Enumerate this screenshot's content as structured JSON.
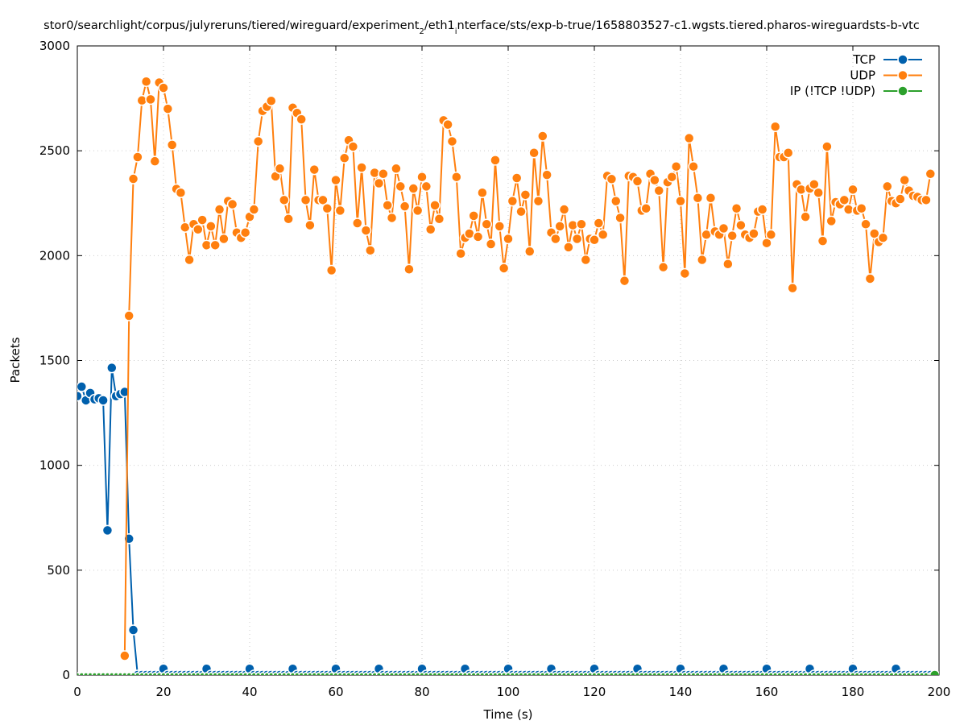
{
  "chart_data": {
    "type": "line",
    "title_parts": [
      {
        "t": "stor0/searchlight/corpus/julyreruns/tiered/wireguard/experiment"
      },
      {
        "t": "2",
        "sub": true
      },
      {
        "t": "/eth1"
      },
      {
        "t": "i",
        "sub": true
      },
      {
        "t": "nterface/sts/exp-b-true/1658803527-c1.wgsts.tiered.pharos-wireguardsts-b-vtc"
      }
    ],
    "xlabel": "Time (s)",
    "ylabel": "Packets",
    "xlim": [
      0,
      200
    ],
    "ylim": [
      0,
      3000
    ],
    "xticks": [
      0,
      20,
      40,
      60,
      80,
      100,
      120,
      140,
      160,
      180,
      200
    ],
    "yticks": [
      0,
      500,
      1000,
      1500,
      2000,
      2500,
      3000
    ],
    "grid": true,
    "legend_position": "top-right",
    "series": [
      {
        "name": "TCP",
        "color": "#0060ad",
        "x_start": 0,
        "values": [
          1330,
          1375,
          1310,
          1345,
          1315,
          1320,
          1310,
          690,
          1465,
          1330,
          1340,
          1350,
          650,
          215,
          0,
          0,
          0,
          0,
          0,
          0,
          30,
          0,
          0,
          0,
          0,
          0,
          0,
          0,
          0,
          0,
          30,
          0,
          0,
          0,
          0,
          0,
          0,
          0,
          0,
          0,
          30,
          0,
          0,
          0,
          0,
          0,
          0,
          0,
          0,
          0,
          30,
          0,
          0,
          0,
          0,
          0,
          0,
          0,
          0,
          0,
          30,
          0,
          0,
          0,
          0,
          0,
          0,
          0,
          0,
          0,
          30,
          0,
          0,
          0,
          0,
          0,
          0,
          0,
          0,
          0,
          30,
          0,
          0,
          0,
          0,
          0,
          0,
          0,
          0,
          0,
          30,
          0,
          0,
          0,
          0,
          0,
          0,
          0,
          0,
          0,
          30,
          0,
          0,
          0,
          0,
          0,
          0,
          0,
          0,
          0,
          30,
          0,
          0,
          0,
          0,
          0,
          0,
          0,
          0,
          0,
          30,
          0,
          0,
          0,
          0,
          0,
          0,
          0,
          0,
          0,
          30,
          0,
          0,
          0,
          0,
          0,
          0,
          0,
          0,
          0,
          30,
          0,
          0,
          0,
          0,
          0,
          0,
          0,
          0,
          0,
          30,
          0,
          0,
          0,
          0,
          0,
          0,
          0,
          0,
          0,
          30,
          0,
          0,
          0,
          0,
          0,
          0,
          0,
          0,
          0,
          30,
          0,
          0,
          0,
          0,
          0,
          0,
          0,
          0,
          0,
          30,
          0,
          0,
          0,
          0,
          0,
          0,
          0,
          0,
          0,
          30,
          0,
          0,
          0,
          0,
          0,
          0,
          0,
          0,
          0
        ]
      },
      {
        "name": "UDP",
        "color": "#ff7f0e",
        "x_start": 11,
        "values": [
          92,
          1713,
          2366,
          2470,
          2740,
          2830,
          2745,
          2450,
          2825,
          2800,
          2700,
          2528,
          2318,
          2300,
          2135,
          1980,
          2150,
          2125,
          2170,
          2050,
          2140,
          2050,
          2220,
          2080,
          2260,
          2245,
          2110,
          2085,
          2110,
          2185,
          2220,
          2545,
          2690,
          2710,
          2738,
          2378,
          2415,
          2265,
          2175,
          2705,
          2680,
          2650,
          2265,
          2145,
          2410,
          2265,
          2265,
          2225,
          1930,
          2360,
          2215,
          2465,
          2550,
          2520,
          2155,
          2420,
          2120,
          2025,
          2395,
          2345,
          2390,
          2240,
          2180,
          2415,
          2330,
          2235,
          1935,
          2320,
          2215,
          2375,
          2330,
          2125,
          2240,
          2175,
          2645,
          2625,
          2545,
          2375,
          2010,
          2085,
          2105,
          2190,
          2090,
          2300,
          2150,
          2055,
          2455,
          2140,
          1940,
          2080,
          2260,
          2370,
          2210,
          2290,
          2020,
          2490,
          2260,
          2570,
          2385,
          2110,
          2080,
          2140,
          2220,
          2040,
          2145,
          2080,
          2150,
          1980,
          2080,
          2075,
          2155,
          2100,
          2380,
          2365,
          2260,
          2180,
          1880,
          2380,
          2375,
          2355,
          2215,
          2225,
          2390,
          2360,
          2310,
          1945,
          2350,
          2375,
          2425,
          2260,
          1915,
          2560,
          2425,
          2275,
          1980,
          2100,
          2275,
          2115,
          2100,
          2130,
          1960,
          2095,
          2225,
          2145,
          2100,
          2085,
          2105,
          2210,
          2220,
          2060,
          2100,
          2615,
          2470,
          2470,
          2490,
          1845,
          2340,
          2315,
          2185,
          2320,
          2340,
          2300,
          2070,
          2520,
          2165,
          2255,
          2245,
          2265,
          2220,
          2315,
          2215,
          2225,
          2150,
          1890,
          2105,
          2065,
          2085,
          2330,
          2260,
          2250,
          2270,
          2360,
          2310,
          2285,
          2280,
          2265,
          2265,
          2390
        ]
      },
      {
        "name": "IP (!TCP  !UDP)",
        "color": "#2ca02c",
        "x_start": 0,
        "constant": 0,
        "x_end": 199
      }
    ]
  }
}
